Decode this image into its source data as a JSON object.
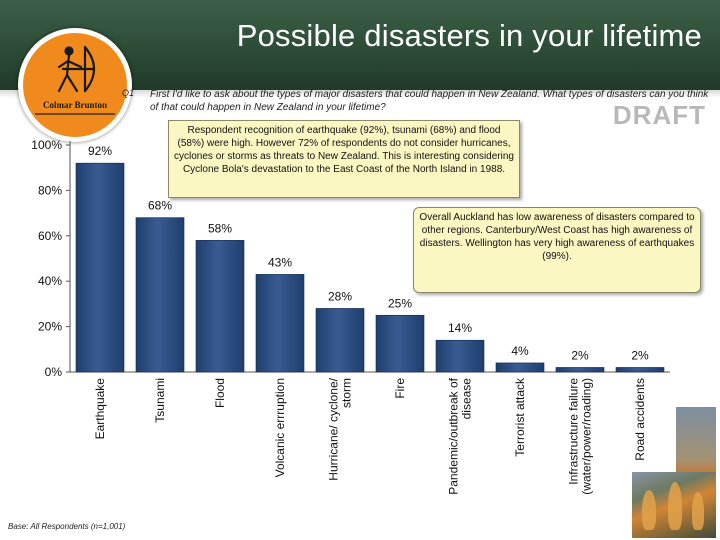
{
  "header": {
    "title": "Possible disasters in your lifetime",
    "logo_text": "Colmar Brunton"
  },
  "question": {
    "number": "Q1",
    "text": "First I'd like to ask about the types of major disasters that could happen in New Zealand.  What types of disasters can you think of that could happen in New Zealand in your lifetime?"
  },
  "watermark": "DRAFT",
  "callouts": {
    "recognition": "Respondent recognition of earthquake (92%), tsunami (68%) and flood (58%) were high.  However 72% of respondents do not consider hurricanes, cyclones or storms as threats to New Zealand.  This is interesting considering Cyclone Bola's devastation to the East Coast of the North Island in 1988.",
    "regional": "Overall Auckland has low awareness of disasters compared to other regions.  Canterbury/West Coast has high awareness of disasters. Wellington has very high awareness of earthquakes (99%)."
  },
  "base_note": "Base: All Respondents (n=1,001)",
  "chart_data": {
    "type": "bar",
    "categories": [
      "Earthquake",
      "Tsunami",
      "Flood",
      "Volcanic errruption",
      "Hurricane/ cyclone/ storm",
      "Fire",
      "Pandemic/outbreak of disease",
      "Terrorist attack",
      "Infrastructure failure (water/power/roading)",
      "Road accidents"
    ],
    "category_lines": [
      [
        "Earthquake"
      ],
      [
        "Tsunami"
      ],
      [
        "Flood"
      ],
      [
        "Volcanic errruption"
      ],
      [
        "Hurricane/ cyclone/",
        "storm"
      ],
      [
        "Fire"
      ],
      [
        "Pandemic/outbreak of",
        "disease"
      ],
      [
        "Terrorist attack"
      ],
      [
        "Infrastructure failure",
        "(water/power/roading)"
      ],
      [
        "Road accidents"
      ]
    ],
    "values": [
      92,
      68,
      58,
      43,
      28,
      25,
      14,
      4,
      2,
      2
    ],
    "value_labels": [
      "92%",
      "68%",
      "58%",
      "43%",
      "28%",
      "25%",
      "14%",
      "4%",
      "2%",
      "2%"
    ],
    "y_ticks": [
      0,
      20,
      40,
      60,
      80,
      100
    ],
    "y_tick_labels": [
      "0%",
      "20%",
      "40%",
      "60%",
      "80%",
      "100%"
    ],
    "ylim": [
      0,
      100
    ],
    "bar_color": "#1f3e6e",
    "bar_highlight": "#3a5c93",
    "grid": false
  }
}
